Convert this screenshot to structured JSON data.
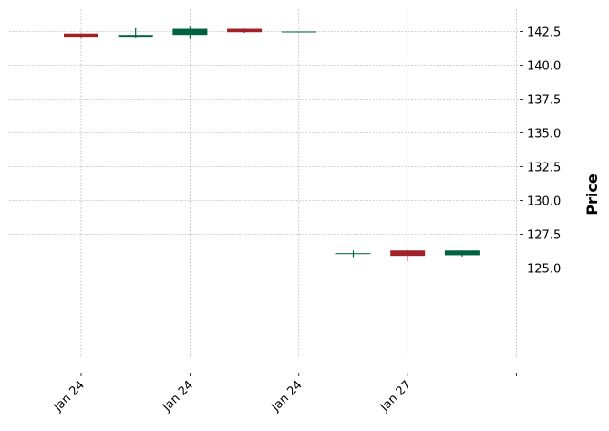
{
  "chart_data": {
    "type": "candlestick",
    "title": "",
    "xlabel": "",
    "ylabel": "Price",
    "ylim": [
      124.5,
      144.2
    ],
    "y_ticks": [
      "125.0",
      "127.5",
      "130.0",
      "132.5",
      "135.0",
      "137.5",
      "140.0",
      "142.5"
    ],
    "x_tick_labels": [
      "Jan 24",
      "Jan 24",
      "Jan 24",
      "Jan 27",
      ""
    ],
    "grid": true,
    "y_axis_position": "right",
    "up_color": "#006340",
    "down_color": "#a02128",
    "candles": [
      {
        "open": 142.35,
        "high": 142.35,
        "low": 142.0,
        "close": 142.05
      },
      {
        "open": 142.05,
        "high": 142.75,
        "low": 142.0,
        "close": 142.25
      },
      {
        "open": 142.25,
        "high": 142.85,
        "low": 141.95,
        "close": 142.7
      },
      {
        "open": 142.7,
        "high": 142.72,
        "low": 142.4,
        "close": 142.45
      },
      {
        "open": 142.5,
        "high": 142.5,
        "low": 142.5,
        "close": 142.5
      },
      {
        "open": 126.05,
        "high": 126.3,
        "low": 125.8,
        "close": 126.1
      },
      {
        "open": 126.3,
        "high": 126.35,
        "low": 125.5,
        "close": 125.9
      },
      {
        "open": 125.95,
        "high": 126.3,
        "low": 125.85,
        "close": 126.3
      }
    ]
  }
}
